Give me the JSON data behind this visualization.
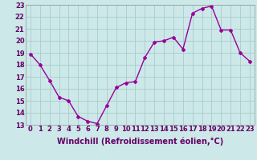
{
  "x": [
    0,
    1,
    2,
    3,
    4,
    5,
    6,
    7,
    8,
    9,
    10,
    11,
    12,
    13,
    14,
    15,
    16,
    17,
    18,
    19,
    20,
    21,
    22,
    23
  ],
  "y": [
    18.9,
    18.0,
    16.7,
    15.3,
    15.0,
    13.7,
    13.3,
    13.1,
    14.6,
    16.1,
    16.5,
    16.6,
    18.6,
    19.9,
    20.0,
    20.3,
    19.3,
    22.3,
    22.7,
    22.9,
    20.9,
    20.9,
    19.0,
    18.3
  ],
  "line_color": "#990099",
  "marker": "D",
  "marker_size": 2,
  "bg_color": "#cce8e8",
  "grid_color": "#aacccc",
  "xlabel": "Windchill (Refroidissement éolien,°C)",
  "xlabel_fontsize": 7,
  "ylim": [
    13,
    23
  ],
  "xlim_min": -0.5,
  "xlim_max": 23.5,
  "tick_fontsize": 6,
  "line_width": 1.0,
  "text_color": "#660066"
}
